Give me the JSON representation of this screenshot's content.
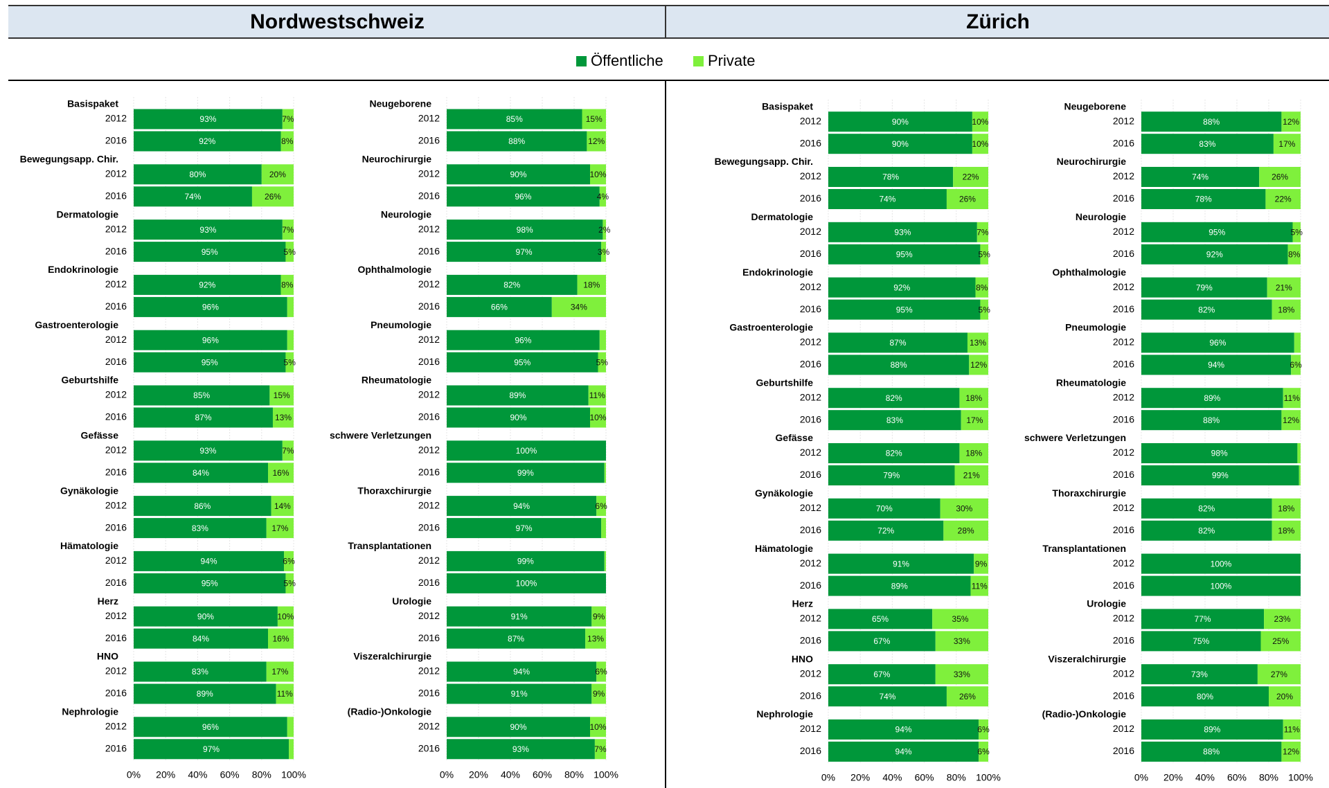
{
  "region_titles": [
    "Nordwestschweiz",
    "Zürich"
  ],
  "chart_data": [
    {
      "type": "stacked-hbar",
      "region": 0,
      "categories": [
        "Basispaket",
        "Bewegungsapp. Chir.",
        "Dermatologie",
        "Endokrinologie",
        "Gastroenterologie",
        "Geburtshilfe",
        "Gefässe",
        "Gynäkologie",
        "Hämatologie",
        "Herz",
        "HNO",
        "Nephrologie"
      ],
      "years": [
        "2012",
        "2016"
      ],
      "xlim": [
        0,
        100
      ],
      "xticks": [
        {
          "value": 0,
          "label": "0%"
        },
        {
          "value": 20,
          "label": "20%"
        },
        {
          "value": 40,
          "label": "40%"
        },
        {
          "value": 60,
          "label": "60%"
        },
        {
          "value": 80,
          "label": "80%"
        },
        {
          "value": 100,
          "label": "100%"
        }
      ],
      "series": [
        {
          "name": "Öffentliche",
          "color": "#00973a",
          "values": [
            [
              93,
              92
            ],
            [
              80,
              74
            ],
            [
              93,
              95
            ],
            [
              92,
              96
            ],
            [
              96,
              95
            ],
            [
              85,
              87
            ],
            [
              93,
              84
            ],
            [
              86,
              83
            ],
            [
              94,
              95
            ],
            [
              90,
              84
            ],
            [
              83,
              89
            ],
            [
              96,
              97
            ]
          ],
          "value_labels": [
            [
              "93%",
              "92%"
            ],
            [
              "80%",
              "74%"
            ],
            [
              "93%",
              "95%"
            ],
            [
              "92%",
              "96%"
            ],
            [
              "96%",
              "95%"
            ],
            [
              "85%",
              "87%"
            ],
            [
              "93%",
              "84%"
            ],
            [
              "86%",
              "83%"
            ],
            [
              "94%",
              "95%"
            ],
            [
              "90%",
              "84%"
            ],
            [
              "83%",
              "89%"
            ],
            [
              "96%",
              "97%"
            ]
          ]
        },
        {
          "name": "Private",
          "color": "#7ff03c",
          "values": [
            [
              7,
              8
            ],
            [
              20,
              26
            ],
            [
              7,
              5
            ],
            [
              8,
              4
            ],
            [
              4,
              5
            ],
            [
              15,
              13
            ],
            [
              7,
              16
            ],
            [
              14,
              17
            ],
            [
              6,
              5
            ],
            [
              10,
              16
            ],
            [
              17,
              11
            ],
            [
              4,
              3
            ]
          ],
          "value_labels": [
            [
              "7%",
              "8%"
            ],
            [
              "20%",
              "26%"
            ],
            [
              "7%",
              "5%"
            ],
            [
              "8%",
              null
            ],
            [
              null,
              "5%"
            ],
            [
              "15%",
              "13%"
            ],
            [
              "7%",
              "16%"
            ],
            [
              "14%",
              "17%"
            ],
            [
              "6%",
              "5%"
            ],
            [
              "10%",
              "16%"
            ],
            [
              "17%",
              "11%"
            ],
            [
              null,
              null
            ]
          ]
        }
      ]
    },
    {
      "type": "stacked-hbar",
      "region": 0,
      "categories": [
        "Neugeborene",
        "Neurochirurgie",
        "Neurologie",
        "Ophthalmologie",
        "Pneumologie",
        "Rheumatologie",
        "schwere Verletzungen",
        "Thoraxchirurgie",
        "Transplantationen",
        "Urologie",
        "Viszeralchirurgie",
        "(Radio-)Onkologie"
      ],
      "years": [
        "2012",
        "2016"
      ],
      "xlim": [
        0,
        100
      ],
      "xticks": [
        {
          "value": 0,
          "label": "0%"
        },
        {
          "value": 20,
          "label": "20%"
        },
        {
          "value": 40,
          "label": "40%"
        },
        {
          "value": 60,
          "label": "60%"
        },
        {
          "value": 80,
          "label": "80%"
        },
        {
          "value": 100,
          "label": "100%"
        }
      ],
      "series": [
        {
          "name": "Öffentliche",
          "color": "#00973a",
          "values": [
            [
              85,
              88
            ],
            [
              90,
              96
            ],
            [
              98,
              97
            ],
            [
              82,
              66
            ],
            [
              96,
              95
            ],
            [
              89,
              90
            ],
            [
              100,
              99
            ],
            [
              94,
              97
            ],
            [
              99,
              100
            ],
            [
              91,
              87
            ],
            [
              94,
              91
            ],
            [
              90,
              93
            ]
          ],
          "value_labels": [
            [
              "85%",
              "88%"
            ],
            [
              "90%",
              "96%"
            ],
            [
              "98%",
              "97%"
            ],
            [
              "82%",
              "66%"
            ],
            [
              "96%",
              "95%"
            ],
            [
              "89%",
              "90%"
            ],
            [
              "100%",
              "99%"
            ],
            [
              "94%",
              "97%"
            ],
            [
              "99%",
              "100%"
            ],
            [
              "91%",
              "87%"
            ],
            [
              "94%",
              "91%"
            ],
            [
              "90%",
              "93%"
            ]
          ]
        },
        {
          "name": "Private",
          "color": "#7ff03c",
          "values": [
            [
              15,
              12
            ],
            [
              10,
              4
            ],
            [
              2,
              3
            ],
            [
              18,
              34
            ],
            [
              4,
              5
            ],
            [
              11,
              10
            ],
            [
              0,
              1
            ],
            [
              6,
              3
            ],
            [
              1,
              0
            ],
            [
              9,
              13
            ],
            [
              6,
              9
            ],
            [
              10,
              7
            ]
          ],
          "value_labels": [
            [
              "15%",
              "12%"
            ],
            [
              "10%",
              "4%"
            ],
            [
              "2%",
              "3%"
            ],
            [
              "18%",
              "34%"
            ],
            [
              null,
              "5%"
            ],
            [
              "11%",
              "10%"
            ],
            [
              null,
              null
            ],
            [
              "6%",
              null
            ],
            [
              null,
              null
            ],
            [
              "9%",
              "13%"
            ],
            [
              "6%",
              "9%"
            ],
            [
              "10%",
              "7%"
            ]
          ]
        }
      ]
    },
    {
      "type": "stacked-hbar",
      "region": 1,
      "categories": [
        "Basispaket",
        "Bewegungsapp. Chir.",
        "Dermatologie",
        "Endokrinologie",
        "Gastroenterologie",
        "Geburtshilfe",
        "Gefässe",
        "Gynäkologie",
        "Hämatologie",
        "Herz",
        "HNO",
        "Nephrologie"
      ],
      "years": [
        "2012",
        "2016"
      ],
      "xlim": [
        0,
        100
      ],
      "xticks": [
        {
          "value": 0,
          "label": "0%"
        },
        {
          "value": 20,
          "label": "20%"
        },
        {
          "value": 40,
          "label": "40%"
        },
        {
          "value": 60,
          "label": "60%"
        },
        {
          "value": 80,
          "label": "80%"
        },
        {
          "value": 100,
          "label": "100%"
        }
      ],
      "series": [
        {
          "name": "Öffentliche",
          "color": "#00973a",
          "values": [
            [
              90,
              90
            ],
            [
              78,
              74
            ],
            [
              93,
              95
            ],
            [
              92,
              95
            ],
            [
              87,
              88
            ],
            [
              82,
              83
            ],
            [
              82,
              79
            ],
            [
              70,
              72
            ],
            [
              91,
              89
            ],
            [
              65,
              67
            ],
            [
              67,
              74
            ],
            [
              94,
              94
            ]
          ],
          "value_labels": [
            [
              "90%",
              "90%"
            ],
            [
              "78%",
              "74%"
            ],
            [
              "93%",
              "95%"
            ],
            [
              "92%",
              "95%"
            ],
            [
              "87%",
              "88%"
            ],
            [
              "82%",
              "83%"
            ],
            [
              "82%",
              "79%"
            ],
            [
              "70%",
              "72%"
            ],
            [
              "91%",
              "89%"
            ],
            [
              "65%",
              "67%"
            ],
            [
              "67%",
              "74%"
            ],
            [
              "94%",
              "94%"
            ]
          ]
        },
        {
          "name": "Private",
          "color": "#7ff03c",
          "values": [
            [
              10,
              10
            ],
            [
              22,
              26
            ],
            [
              7,
              5
            ],
            [
              8,
              5
            ],
            [
              13,
              12
            ],
            [
              18,
              17
            ],
            [
              18,
              21
            ],
            [
              30,
              28
            ],
            [
              9,
              11
            ],
            [
              35,
              33
            ],
            [
              33,
              26
            ],
            [
              6,
              6
            ]
          ],
          "value_labels": [
            [
              "10%",
              "10%"
            ],
            [
              "22%",
              "26%"
            ],
            [
              "7%",
              "5%"
            ],
            [
              "8%",
              "5%"
            ],
            [
              "13%",
              "12%"
            ],
            [
              "18%",
              "17%"
            ],
            [
              "18%",
              "21%"
            ],
            [
              "30%",
              "28%"
            ],
            [
              "9%",
              "11%"
            ],
            [
              "35%",
              "33%"
            ],
            [
              "33%",
              "26%"
            ],
            [
              "6%",
              "6%"
            ]
          ]
        }
      ]
    },
    {
      "type": "stacked-hbar",
      "region": 1,
      "categories": [
        "Neugeborene",
        "Neurochirurgie",
        "Neurologie",
        "Ophthalmologie",
        "Pneumologie",
        "Rheumatologie",
        "schwere Verletzungen",
        "Thoraxchirurgie",
        "Transplantationen",
        "Urologie",
        "Viszeralchirurgie",
        "(Radio-)Onkologie"
      ],
      "years": [
        "2012",
        "2016"
      ],
      "xlim": [
        0,
        100
      ],
      "xticks": [
        {
          "value": 0,
          "label": "0%"
        },
        {
          "value": 20,
          "label": "20%"
        },
        {
          "value": 40,
          "label": "40%"
        },
        {
          "value": 60,
          "label": "60%"
        },
        {
          "value": 80,
          "label": "80%"
        },
        {
          "value": 100,
          "label": "100%"
        }
      ],
      "series": [
        {
          "name": "Öffentliche",
          "color": "#00973a",
          "values": [
            [
              88,
              83
            ],
            [
              74,
              78
            ],
            [
              95,
              92
            ],
            [
              79,
              82
            ],
            [
              96,
              94
            ],
            [
              89,
              88
            ],
            [
              98,
              99
            ],
            [
              82,
              82
            ],
            [
              100,
              100
            ],
            [
              77,
              75
            ],
            [
              73,
              80
            ],
            [
              89,
              88
            ]
          ],
          "value_labels": [
            [
              "88%",
              "83%"
            ],
            [
              "74%",
              "78%"
            ],
            [
              "95%",
              "92%"
            ],
            [
              "79%",
              "82%"
            ],
            [
              "96%",
              "94%"
            ],
            [
              "89%",
              "88%"
            ],
            [
              "98%",
              "99%"
            ],
            [
              "82%",
              "82%"
            ],
            [
              "100%",
              "100%"
            ],
            [
              "77%",
              "75%"
            ],
            [
              "73%",
              "80%"
            ],
            [
              "89%",
              "88%"
            ]
          ]
        },
        {
          "name": "Private",
          "color": "#7ff03c",
          "values": [
            [
              12,
              17
            ],
            [
              26,
              22
            ],
            [
              5,
              8
            ],
            [
              21,
              18
            ],
            [
              4,
              6
            ],
            [
              11,
              12
            ],
            [
              2,
              1
            ],
            [
              18,
              18
            ],
            [
              0,
              0
            ],
            [
              23,
              25
            ],
            [
              27,
              20
            ],
            [
              11,
              12
            ]
          ],
          "value_labels": [
            [
              "12%",
              "17%"
            ],
            [
              "26%",
              "22%"
            ],
            [
              "5%",
              "8%"
            ],
            [
              "21%",
              "18%"
            ],
            [
              null,
              "6%"
            ],
            [
              "11%",
              "12%"
            ],
            [
              null,
              null
            ],
            [
              "18%",
              "18%"
            ],
            [
              null,
              null
            ],
            [
              "23%",
              "25%"
            ],
            [
              "27%",
              "20%"
            ],
            [
              "11%",
              "12%"
            ]
          ]
        }
      ]
    }
  ]
}
